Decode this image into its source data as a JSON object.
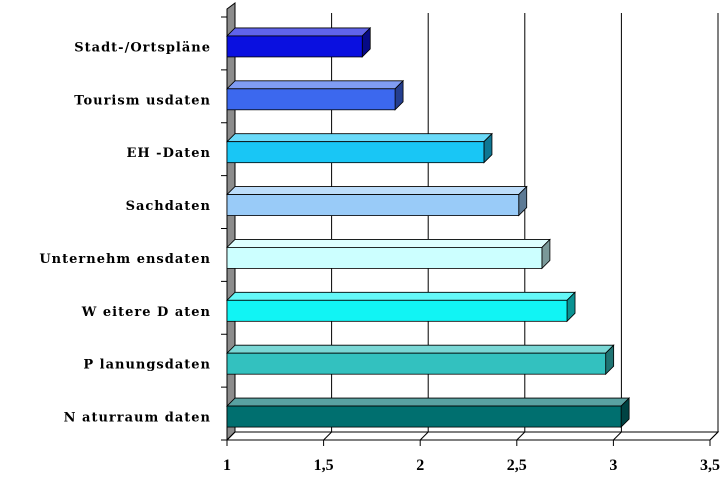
{
  "chart_data": {
    "type": "bar",
    "orientation": "horizontal",
    "three_d": true,
    "categories": [
      "Stadt-/Ortspläne",
      "Tourism usdaten",
      "EH -Daten",
      "Sachdaten",
      "Unternehm ensdaten",
      "W eitere D aten",
      "P lanungsdaten",
      "N aturraum daten"
    ],
    "values": [
      1.7,
      1.87,
      2.33,
      2.51,
      2.63,
      2.76,
      2.96,
      3.04
    ],
    "colors": [
      "#0a10e0",
      "#3c68ee",
      "#19c6f5",
      "#99cbf8",
      "#ccffff",
      "#11f4f4",
      "#33c1bf",
      "#006f6f"
    ],
    "x_ticks": [
      "1",
      "1,5",
      "2",
      "2,5",
      "3",
      "3,5"
    ],
    "xlim": [
      1,
      3.5
    ],
    "grid": "vertical"
  }
}
